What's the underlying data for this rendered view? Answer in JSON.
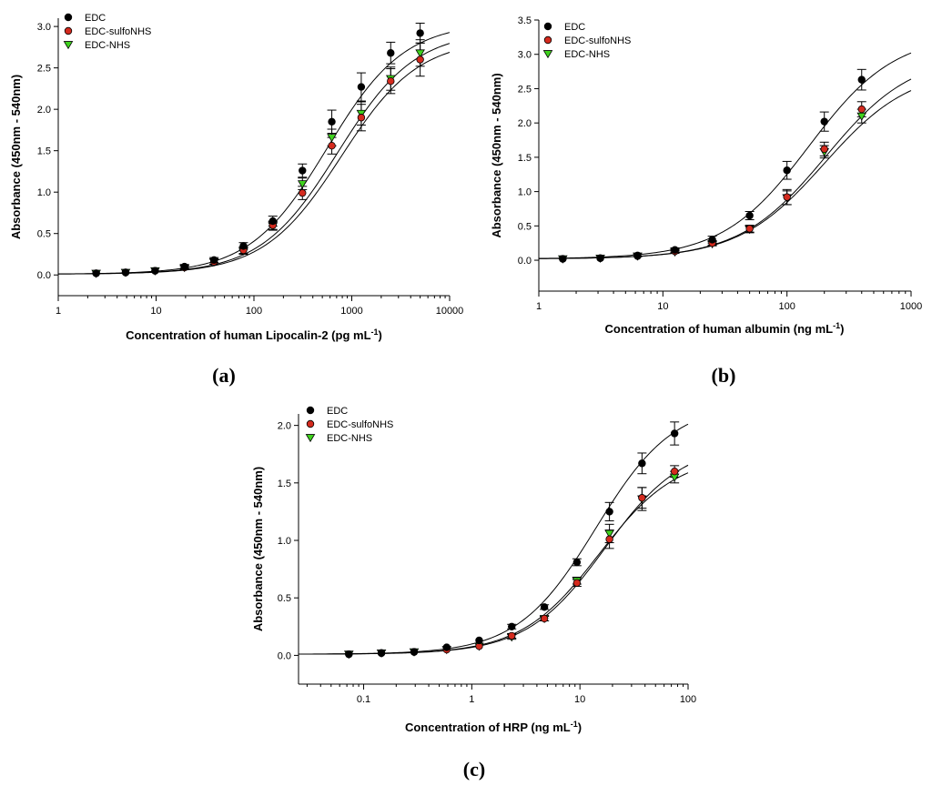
{
  "colors": {
    "EDC": "#000000",
    "EDC-sulfoNHS": "#d42a1e",
    "EDC-NHS": "#3fd21e"
  },
  "chart_data": [
    {
      "type": "scatter",
      "panel_label": "(a)",
      "xscale": "log",
      "xlim": [
        1,
        10000
      ],
      "ylim": [
        -0.25,
        3.1
      ],
      "xticks": [
        1,
        10,
        100,
        1000,
        10000
      ],
      "xtick_labels": [
        "1",
        "10",
        "100",
        "1000",
        "10000"
      ],
      "yticks": [
        0,
        0.5,
        1,
        1.5,
        2,
        2.5,
        3
      ],
      "ytick_labels": [
        "0.0",
        "0.5",
        "1.0",
        "1.5",
        "2.0",
        "2.5",
        "3.0"
      ],
      "xlabel": "Concentration of human Lipocalin-2 (pg mL",
      "xlabel_sup": "-1",
      "xlabel_tail": ")",
      "ylabel": "Absorbance (450nm - 540nm)",
      "legend_position": "top-left",
      "series": [
        {
          "name": "EDC",
          "marker": "circle",
          "x": [
            2.44,
            4.88,
            9.77,
            19.5,
            39.1,
            78.1,
            156,
            313,
            625,
            1250,
            2500,
            5000
          ],
          "y": [
            0.02,
            0.03,
            0.05,
            0.1,
            0.18,
            0.35,
            0.65,
            1.26,
            1.85,
            2.27,
            2.68,
            2.92
          ],
          "err": [
            0.01,
            0.01,
            0.01,
            0.02,
            0.03,
            0.04,
            0.06,
            0.08,
            0.14,
            0.17,
            0.13,
            0.12
          ],
          "fit": {
            "A": 0.01,
            "D": 3.05,
            "C": 560,
            "B": 1.1
          }
        },
        {
          "name": "EDC-sulfoNHS",
          "marker": "circle",
          "x": [
            2.44,
            4.88,
            9.77,
            19.5,
            39.1,
            78.1,
            156,
            313,
            625,
            1250,
            2500,
            5000
          ],
          "y": [
            0.02,
            0.03,
            0.05,
            0.09,
            0.16,
            0.3,
            0.6,
            0.99,
            1.56,
            1.9,
            2.34,
            2.6
          ],
          "err": [
            0.01,
            0.01,
            0.01,
            0.02,
            0.03,
            0.04,
            0.05,
            0.08,
            0.1,
            0.16,
            0.15,
            0.2
          ],
          "fit": {
            "A": 0.01,
            "D": 2.85,
            "C": 780,
            "B": 1.1
          }
        },
        {
          "name": "EDC-NHS",
          "marker": "triangle-down",
          "x": [
            2.44,
            4.88,
            9.77,
            19.5,
            39.1,
            78.1,
            156,
            313,
            625,
            1250,
            2500,
            5000
          ],
          "y": [
            0.02,
            0.03,
            0.05,
            0.09,
            0.16,
            0.29,
            0.59,
            1.1,
            1.66,
            1.95,
            2.37,
            2.68
          ],
          "err": [
            0.01,
            0.01,
            0.01,
            0.02,
            0.03,
            0.04,
            0.05,
            0.07,
            0.1,
            0.14,
            0.14,
            0.16
          ],
          "fit": {
            "A": 0.01,
            "D": 2.95,
            "C": 720,
            "B": 1.1
          }
        }
      ]
    },
    {
      "type": "scatter",
      "panel_label": "(b)",
      "xscale": "log",
      "xlim": [
        1,
        1000
      ],
      "ylim": [
        -0.45,
        3.5
      ],
      "xticks": [
        1,
        10,
        100,
        1000
      ],
      "xtick_labels": [
        "1",
        "10",
        "100",
        "1000"
      ],
      "yticks": [
        0,
        0.5,
        1,
        1.5,
        2,
        2.5,
        3,
        3.5
      ],
      "ytick_labels": [
        "0.0",
        "0.5",
        "1.0",
        "1.5",
        "2.0",
        "2.5",
        "3.0",
        "3.5"
      ],
      "xlabel": "Concentration of human albumin (ng mL",
      "xlabel_sup": "-1",
      "xlabel_tail": ")",
      "ylabel": "Absorbance (450nm - 540nm)",
      "legend_position": "top-left",
      "series": [
        {
          "name": "EDC",
          "marker": "circle",
          "x": [
            1.56,
            3.13,
            6.25,
            12.5,
            25,
            50,
            100,
            200,
            400
          ],
          "y": [
            0.02,
            0.03,
            0.07,
            0.15,
            0.3,
            0.65,
            1.31,
            2.02,
            2.63
          ],
          "err": [
            0.01,
            0.01,
            0.02,
            0.03,
            0.05,
            0.06,
            0.13,
            0.14,
            0.15
          ],
          "fit": {
            "A": 0.02,
            "D": 3.3,
            "C": 150,
            "B": 1.25
          }
        },
        {
          "name": "EDC-sulfoNHS",
          "marker": "circle",
          "x": [
            1.56,
            3.13,
            6.25,
            12.5,
            25,
            50,
            100,
            200,
            400
          ],
          "y": [
            0.02,
            0.03,
            0.06,
            0.13,
            0.25,
            0.46,
            0.92,
            1.62,
            2.2
          ],
          "err": [
            0.01,
            0.01,
            0.01,
            0.02,
            0.03,
            0.05,
            0.11,
            0.1,
            0.11
          ],
          "fit": {
            "A": 0.02,
            "D": 3.0,
            "C": 205,
            "B": 1.25
          }
        },
        {
          "name": "EDC-NHS",
          "marker": "triangle-down",
          "x": [
            1.56,
            3.13,
            6.25,
            12.5,
            25,
            50,
            100,
            200,
            400
          ],
          "y": [
            0.02,
            0.03,
            0.06,
            0.12,
            0.24,
            0.45,
            0.91,
            1.58,
            2.1
          ],
          "err": [
            0.01,
            0.01,
            0.01,
            0.02,
            0.03,
            0.05,
            0.1,
            0.09,
            0.1
          ],
          "fit": {
            "A": 0.02,
            "D": 2.8,
            "C": 200,
            "B": 1.25
          }
        }
      ]
    },
    {
      "type": "scatter",
      "panel_label": "(c)",
      "xscale": "log",
      "xlim": [
        0.025,
        100
      ],
      "ylim": [
        -0.25,
        2.1
      ],
      "xticks": [
        0.1,
        1,
        10,
        100
      ],
      "xtick_labels": [
        "0.1",
        "1",
        "10",
        "100"
      ],
      "yticks": [
        0,
        0.5,
        1,
        1.5,
        2
      ],
      "ytick_labels": [
        "0.0",
        "0.5",
        "1.0",
        "1.5",
        "2.0"
      ],
      "xlabel": "Concentration of HRP (ng mL",
      "xlabel_sup": "-1",
      "xlabel_tail": ")",
      "ylabel": "Absorbance (450nm - 540nm)",
      "legend_position": "top-left",
      "series": [
        {
          "name": "EDC",
          "marker": "circle",
          "x": [
            0.073,
            0.146,
            0.293,
            0.586,
            1.17,
            2.34,
            4.69,
            9.38,
            18.75,
            37.5,
            75
          ],
          "y": [
            0.01,
            0.02,
            0.03,
            0.07,
            0.13,
            0.25,
            0.42,
            0.81,
            1.25,
            1.67,
            1.93
          ],
          "err": [
            0.005,
            0.005,
            0.01,
            0.01,
            0.01,
            0.02,
            0.02,
            0.03,
            0.08,
            0.09,
            0.1
          ],
          "fit": {
            "A": 0.01,
            "D": 2.2,
            "C": 14,
            "B": 1.2
          }
        },
        {
          "name": "EDC-sulfoNHS",
          "marker": "circle",
          "x": [
            0.073,
            0.146,
            0.293,
            0.586,
            1.17,
            2.34,
            4.69,
            9.38,
            18.75,
            37.5,
            75
          ],
          "y": [
            0.01,
            0.02,
            0.03,
            0.05,
            0.08,
            0.17,
            0.32,
            0.63,
            1.01,
            1.37,
            1.6
          ],
          "err": [
            0.005,
            0.005,
            0.01,
            0.01,
            0.01,
            0.02,
            0.02,
            0.03,
            0.08,
            0.09,
            0.05
          ],
          "fit": {
            "A": 0.01,
            "D": 1.85,
            "C": 17,
            "B": 1.2
          }
        },
        {
          "name": "EDC-NHS",
          "marker": "triangle-down",
          "x": [
            0.073,
            0.146,
            0.293,
            0.586,
            1.17,
            2.34,
            4.69,
            9.38,
            18.75,
            37.5,
            75
          ],
          "y": [
            0.01,
            0.02,
            0.03,
            0.05,
            0.08,
            0.16,
            0.32,
            0.65,
            1.06,
            1.36,
            1.55
          ],
          "err": [
            0.005,
            0.005,
            0.01,
            0.01,
            0.01,
            0.02,
            0.02,
            0.03,
            0.08,
            0.1,
            0.05
          ],
          "fit": {
            "A": 0.01,
            "D": 1.75,
            "C": 15,
            "B": 1.2
          }
        }
      ]
    }
  ]
}
